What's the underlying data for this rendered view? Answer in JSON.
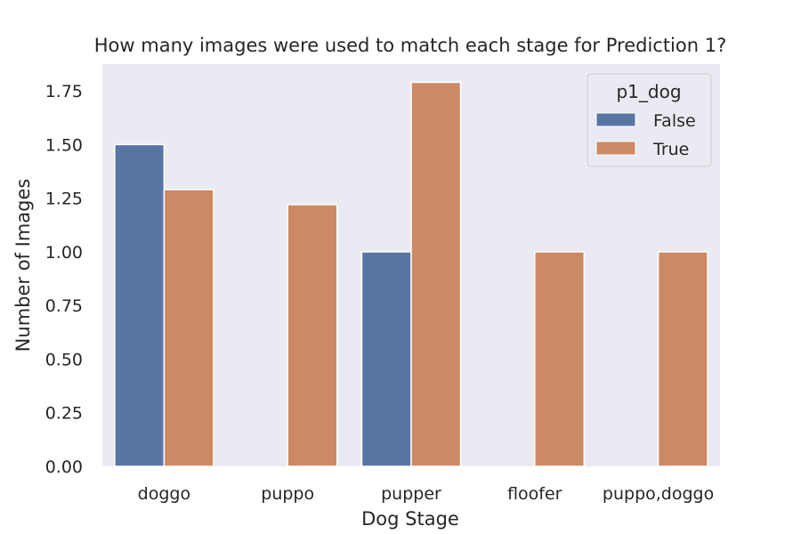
{
  "chart_data": {
    "type": "bar",
    "title": "How many images were used to match each stage for Prediction 1?",
    "xlabel": "Dog Stage",
    "ylabel": "Number of Images",
    "categories": [
      "doggo",
      "puppo",
      "pupper",
      "floofer",
      "puppo,doggo"
    ],
    "series": [
      {
        "name": "False",
        "color": "#5975a4",
        "values": [
          1.5,
          null,
          1.0,
          null,
          null
        ]
      },
      {
        "name": "True",
        "color": "#cc8963",
        "values": [
          1.29,
          1.22,
          1.79,
          1.0,
          1.0
        ]
      }
    ],
    "ylim": [
      0,
      1.875
    ],
    "yticks": [
      "0.00",
      "0.25",
      "0.50",
      "0.75",
      "1.00",
      "1.25",
      "1.50",
      "1.75"
    ],
    "grid": false,
    "legend": {
      "title": "p1_dog",
      "placement": "top-right"
    },
    "background_color": "#eaeaf2"
  }
}
